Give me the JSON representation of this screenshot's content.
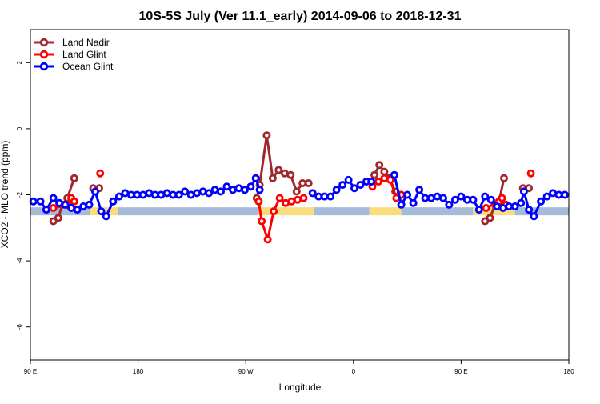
{
  "chart_data": {
    "type": "line",
    "title": "10S-5S July (Ver 11.1_early)   2014-09-06 to 2018-12-31",
    "xlabel": "Longitude",
    "ylabel": "XCO2 - MLO trend (ppm)",
    "xlim": [
      0,
      540
    ],
    "ylim": [
      -7,
      3
    ],
    "x_ticks": [
      {
        "value": 0,
        "label": "90 E"
      },
      {
        "value": 108,
        "label": "180"
      },
      {
        "value": 216,
        "label": "90 W"
      },
      {
        "value": 324,
        "label": "0"
      },
      {
        "value": 432,
        "label": "90 E"
      },
      {
        "value": 540,
        "label": "180"
      }
    ],
    "y_ticks": [
      2,
      0,
      -2,
      -4,
      -6
    ],
    "legend_position": "top-left",
    "land_ocean_band": {
      "y": -2.5,
      "ocean_color": "#a4bcd9",
      "land_color": "#fadc7c",
      "segments": [
        {
          "start": 0,
          "end": 60,
          "kind": "ocean"
        },
        {
          "start": 60,
          "end": 88,
          "kind": "land"
        },
        {
          "start": 88,
          "end": 228,
          "kind": "ocean"
        },
        {
          "start": 228,
          "end": 284,
          "kind": "land"
        },
        {
          "start": 284,
          "end": 340,
          "kind": "ocean"
        },
        {
          "start": 340,
          "end": 372,
          "kind": "land"
        },
        {
          "start": 372,
          "end": 444,
          "kind": "ocean"
        },
        {
          "start": 444,
          "end": 486,
          "kind": "land"
        },
        {
          "start": 486,
          "end": 540,
          "kind": "ocean"
        }
      ]
    },
    "series": [
      {
        "name": "Land Nadir",
        "color": "#a0282c",
        "segments": [
          [
            [
              23,
              -2.8
            ],
            [
              28,
              -2.7
            ],
            [
              32,
              -2.3
            ],
            [
              37,
              -2.1
            ],
            [
              44,
              -1.5
            ]
          ],
          [
            [
              63,
              -1.8
            ],
            [
              69,
              -1.8
            ]
          ],
          [
            [
              227,
              -2.1
            ],
            [
              230,
              -1.7
            ],
            [
              237,
              -0.2
            ],
            [
              243,
              -1.5
            ],
            [
              249,
              -1.25
            ],
            [
              255,
              -1.35
            ],
            [
              261,
              -1.4
            ],
            [
              267,
              -1.9
            ],
            [
              273,
              -1.65
            ],
            [
              279,
              -1.65
            ]
          ],
          [
            [
              345,
              -1.4
            ],
            [
              350,
              -1.1
            ],
            [
              355,
              -1.3
            ],
            [
              360,
              -1.5
            ],
            [
              366,
              -1.9
            ],
            [
              371,
              -2.0
            ]
          ],
          [
            [
              456,
              -2.8
            ],
            [
              461,
              -2.7
            ],
            [
              466,
              -2.3
            ],
            [
              470,
              -2.2
            ],
            [
              475,
              -1.5
            ]
          ],
          [
            [
              494,
              -1.8
            ],
            [
              500,
              -1.8
            ]
          ]
        ]
      },
      {
        "name": "Land Glint",
        "color": "#ff0000",
        "segments": [
          [
            [
              23,
              -2.4
            ],
            [
              37,
              -2.3
            ],
            [
              41,
              -2.1
            ],
            [
              44,
              -2.2
            ]
          ],
          [
            [
              70,
              -1.35
            ]
          ],
          [
            [
              229,
              -2.2
            ],
            [
              232,
              -2.8
            ],
            [
              238,
              -3.35
            ],
            [
              244,
              -2.5
            ],
            [
              250,
              -2.1
            ],
            [
              256,
              -2.25
            ],
            [
              262,
              -2.2
            ],
            [
              268,
              -2.15
            ],
            [
              274,
              -2.1
            ]
          ],
          [
            [
              343,
              -1.75
            ],
            [
              349,
              -1.6
            ],
            [
              355,
              -1.5
            ],
            [
              361,
              -1.55
            ],
            [
              367,
              -2.1
            ],
            [
              372,
              -2.0
            ]
          ],
          [
            [
              457,
              -2.4
            ],
            [
              470,
              -2.2
            ],
            [
              473,
              -2.1
            ],
            [
              477,
              -2.3
            ]
          ],
          [
            [
              502,
              -1.35
            ]
          ]
        ]
      },
      {
        "name": "Ocean Glint",
        "color": "#0000ff",
        "segments": [
          [
            [
              3,
              -2.2
            ],
            [
              10,
              -2.2
            ],
            [
              16,
              -2.45
            ],
            [
              23,
              -2.1
            ],
            [
              29,
              -2.25
            ],
            [
              35,
              -2.3
            ],
            [
              41,
              -2.4
            ],
            [
              47,
              -2.45
            ],
            [
              53,
              -2.35
            ],
            [
              59,
              -2.3
            ],
            [
              65,
              -1.9
            ],
            [
              71,
              -2.5
            ],
            [
              76,
              -2.65
            ],
            [
              83,
              -2.2
            ],
            [
              89,
              -2.05
            ],
            [
              95,
              -1.95
            ],
            [
              101,
              -2.0
            ],
            [
              107,
              -2.0
            ],
            [
              113,
              -2.0
            ],
            [
              119,
              -1.95
            ],
            [
              125,
              -2.0
            ],
            [
              131,
              -2.0
            ],
            [
              137,
              -1.95
            ],
            [
              143,
              -2.0
            ],
            [
              149,
              -2.0
            ],
            [
              155,
              -1.9
            ],
            [
              161,
              -2.0
            ],
            [
              167,
              -1.95
            ],
            [
              173,
              -1.9
            ],
            [
              179,
              -1.95
            ],
            [
              185,
              -1.85
            ],
            [
              191,
              -1.9
            ],
            [
              197,
              -1.75
            ],
            [
              203,
              -1.85
            ],
            [
              209,
              -1.8
            ],
            [
              215,
              -1.85
            ],
            [
              221,
              -1.75
            ],
            [
              226,
              -1.5
            ],
            [
              230,
              -1.85
            ]
          ],
          [
            [
              283,
              -1.95
            ],
            [
              289,
              -2.05
            ],
            [
              295,
              -2.05
            ],
            [
              301,
              -2.05
            ],
            [
              307,
              -1.85
            ],
            [
              313,
              -1.7
            ],
            [
              319,
              -1.55
            ],
            [
              325,
              -1.8
            ],
            [
              331,
              -1.7
            ],
            [
              337,
              -1.6
            ],
            [
              342,
              -1.6
            ]
          ],
          [
            [
              365,
              -1.4
            ],
            [
              372,
              -2.3
            ],
            [
              378,
              -2.0
            ],
            [
              384,
              -2.25
            ],
            [
              390,
              -1.85
            ],
            [
              396,
              -2.1
            ],
            [
              402,
              -2.1
            ],
            [
              408,
              -2.05
            ],
            [
              414,
              -2.1
            ],
            [
              420,
              -2.3
            ],
            [
              426,
              -2.15
            ],
            [
              432,
              -2.05
            ],
            [
              438,
              -2.15
            ],
            [
              444,
              -2.15
            ],
            [
              450,
              -2.45
            ],
            [
              456,
              -2.05
            ],
            [
              462,
              -2.15
            ],
            [
              468,
              -2.35
            ],
            [
              474,
              -2.4
            ],
            [
              480,
              -2.35
            ],
            [
              486,
              -2.35
            ],
            [
              492,
              -2.25
            ],
            [
              495,
              -1.9
            ],
            [
              500,
              -2.45
            ],
            [
              505,
              -2.65
            ],
            [
              512,
              -2.2
            ],
            [
              518,
              -2.05
            ],
            [
              524,
              -1.95
            ],
            [
              530,
              -2.0
            ],
            [
              536,
              -2.0
            ]
          ]
        ]
      }
    ]
  }
}
